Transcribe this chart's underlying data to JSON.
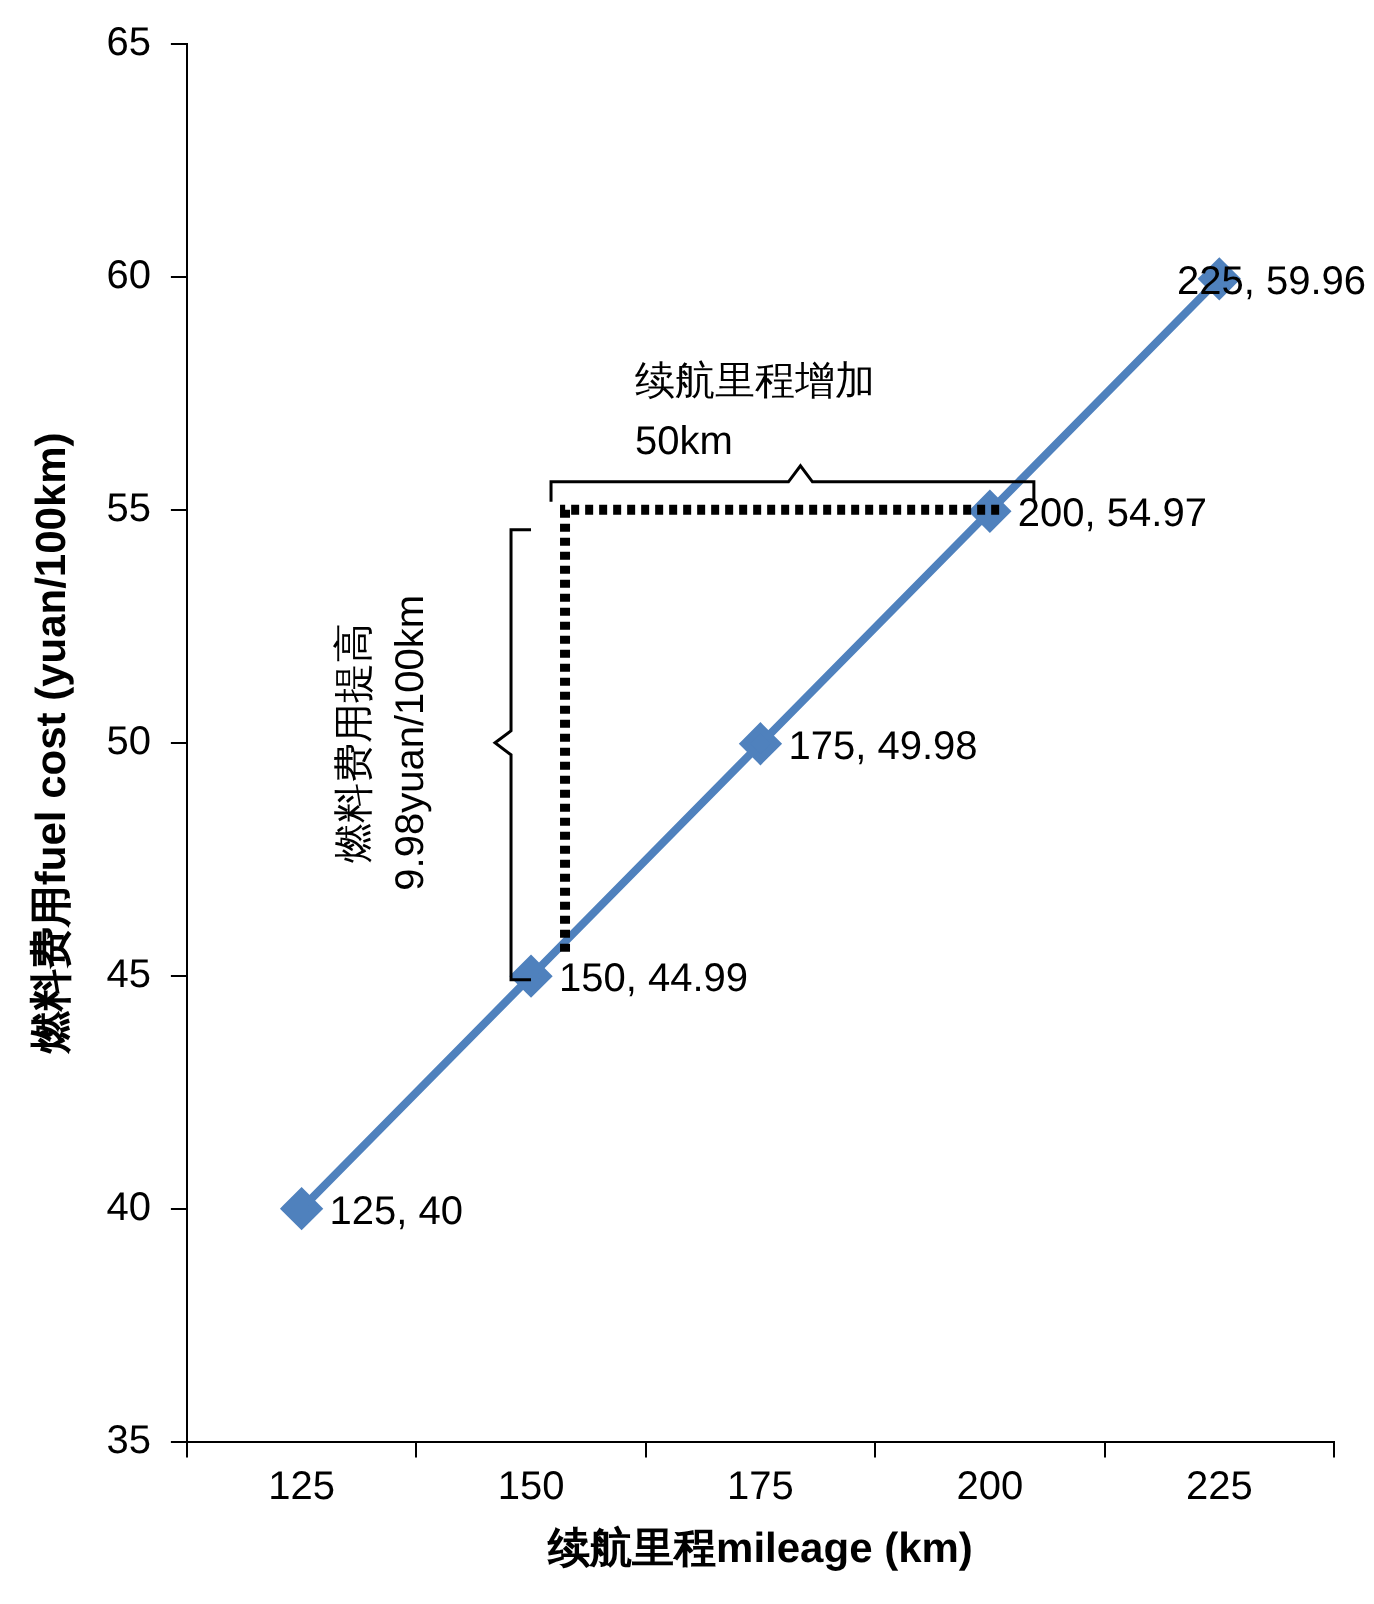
{
  "chart_data": {
    "type": "line",
    "xlabel": "续航里程mileage (km)",
    "ylabel": "燃料费用fuel cost (yuan/100km)",
    "categories": [
      "125",
      "150",
      "175",
      "200",
      "225"
    ],
    "series": [
      {
        "color": "#4f81bd",
        "values": [
          40,
          44.99,
          49.98,
          54.97,
          59.96
        ],
        "value_labels": [
          "125, 40",
          "150, 44.99",
          "175, 49.98",
          "200, 54.97",
          "225, 59.96"
        ]
      }
    ],
    "ylim": [
      35,
      65
    ],
    "yticks": [
      35,
      40,
      45,
      50,
      55,
      60,
      65
    ],
    "grid": false,
    "legend": false,
    "marker": "diamond",
    "line_style": "solid",
    "annotations": [
      "续航里程增加",
      "50km",
      "燃料费用提高",
      "9.98yuan/100km"
    ]
  }
}
